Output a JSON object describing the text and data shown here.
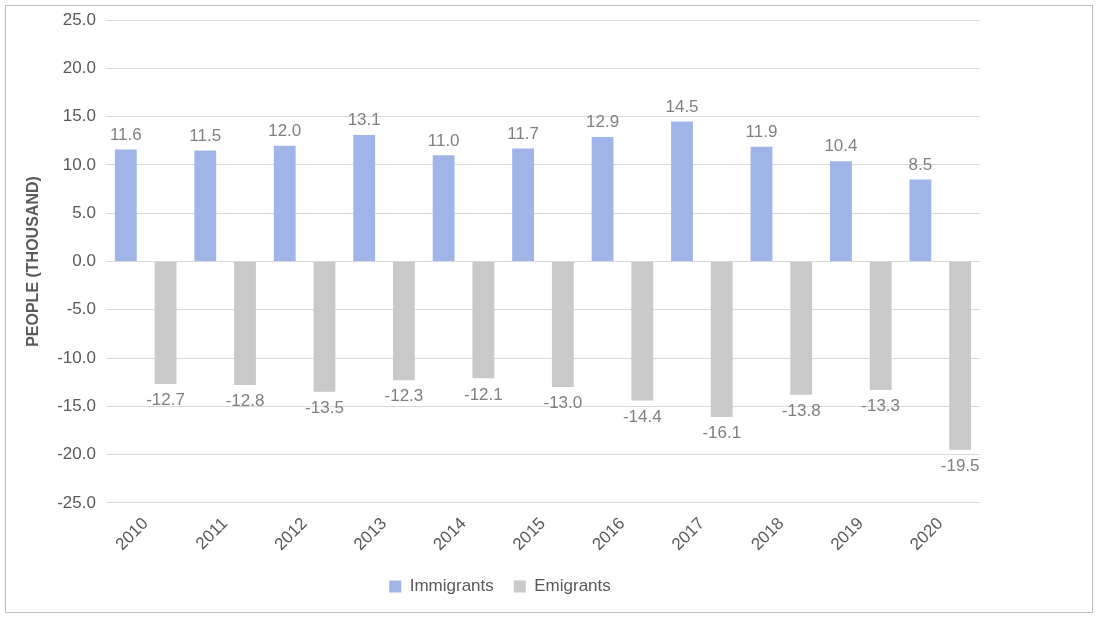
{
  "chart_data": {
    "type": "bar",
    "ylabel": "PEOPLE (THOUSAND)",
    "categories": [
      "2010",
      "2011",
      "2012",
      "2013",
      "2014",
      "2015",
      "2016",
      "2017",
      "2018",
      "2019",
      "2020"
    ],
    "series": [
      {
        "name": "Immigrants",
        "color": "#9fb5e8",
        "values": [
          11.6,
          11.5,
          12.0,
          13.1,
          11.0,
          11.7,
          12.9,
          14.5,
          11.9,
          10.4,
          8.5
        ],
        "value_labels": [
          "11.6",
          "11.5",
          "12.0",
          "13.1",
          "11.0",
          "11.7",
          "12.9",
          "14.5",
          "11.9",
          "10.4",
          "8.5"
        ]
      },
      {
        "name": "Emigrants",
        "color": "#c9c9c9",
        "values": [
          -12.7,
          -12.8,
          -13.5,
          -12.3,
          -12.1,
          -13.0,
          -14.4,
          -16.1,
          -13.8,
          -13.3,
          -19.5
        ],
        "value_labels": [
          "-12.7",
          "-12.8",
          "-13.5",
          "-12.3",
          "-12.1",
          "-13.0",
          "-14.4",
          "-16.1",
          "-13.8",
          "-13.3",
          "-19.5"
        ]
      }
    ],
    "ylim": [
      -25,
      25
    ],
    "yticks": [
      {
        "value": -25,
        "label": "-25.0"
      },
      {
        "value": -20,
        "label": "-20.0"
      },
      {
        "value": -15,
        "label": "-15.0"
      },
      {
        "value": -10,
        "label": "-10.0"
      },
      {
        "value": -5,
        "label": "-5.0"
      },
      {
        "value": 0,
        "label": "0.0"
      },
      {
        "value": 5,
        "label": "5.0"
      },
      {
        "value": 10,
        "label": "10.0"
      },
      {
        "value": 15,
        "label": "15.0"
      },
      {
        "value": 20,
        "label": "20.0"
      },
      {
        "value": 25,
        "label": "25.0"
      }
    ],
    "grid": "y",
    "legend": "bottom"
  }
}
